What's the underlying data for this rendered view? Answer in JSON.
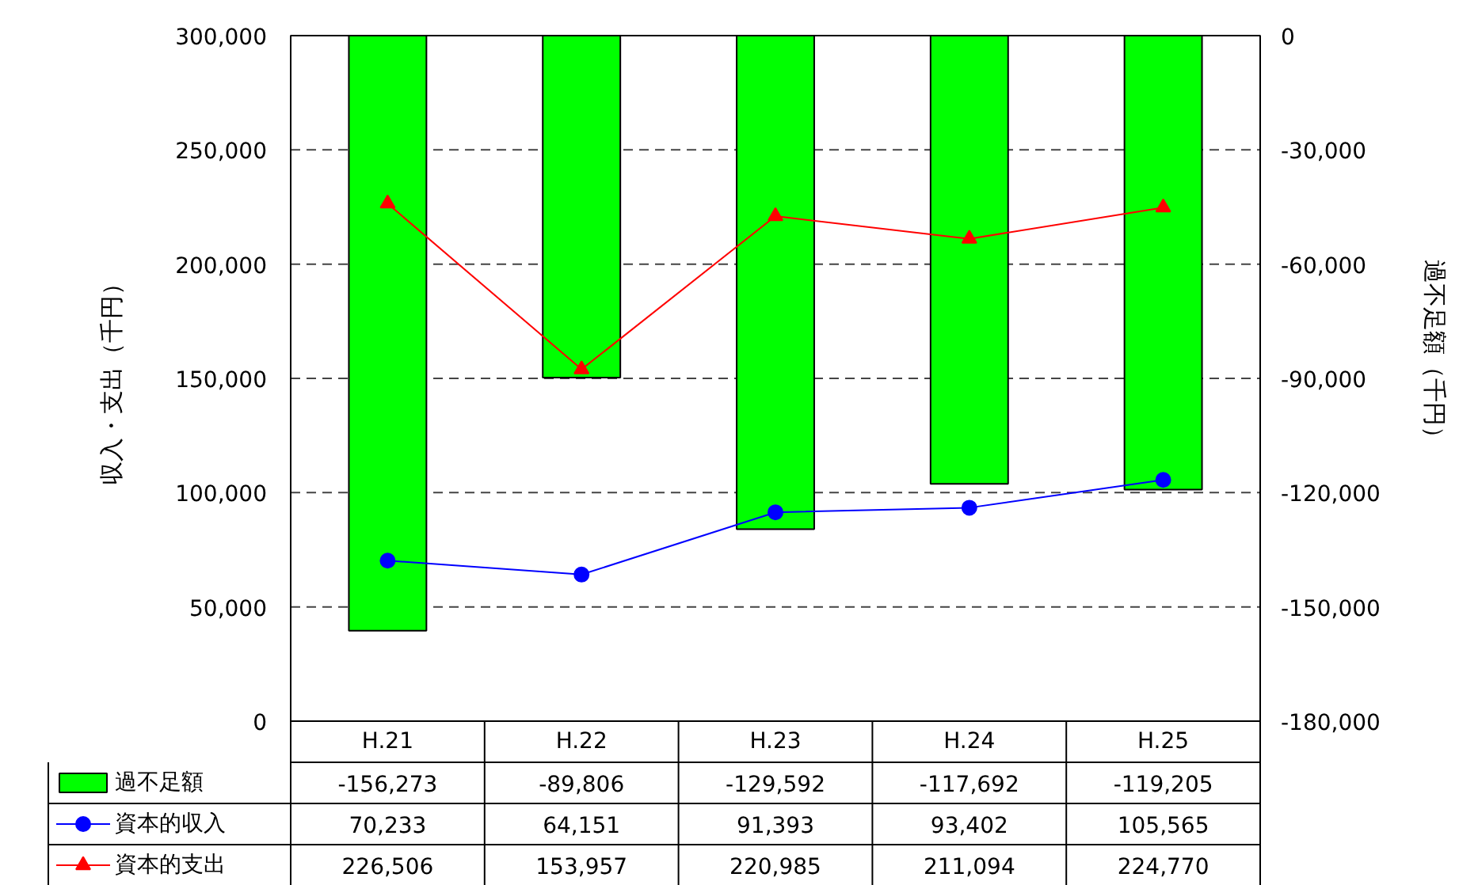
{
  "chart_data": {
    "type": "bar",
    "ylabel": "収入・支出（千円）",
    "y2label": "過不足額（千円）",
    "categories": [
      "H.21",
      "H.22",
      "H.23",
      "H.24",
      "H.25"
    ],
    "ylim": [
      0,
      300000
    ],
    "yticks": [
      {
        "value": 0,
        "label": "0"
      },
      {
        "value": 50000,
        "label": "50,000"
      },
      {
        "value": 100000,
        "label": "100,000"
      },
      {
        "value": 150000,
        "label": "150,000"
      },
      {
        "value": 200000,
        "label": "200,000"
      },
      {
        "value": 250000,
        "label": "250,000"
      },
      {
        "value": 300000,
        "label": "300,000"
      }
    ],
    "y2lim": [
      -180000,
      0
    ],
    "y2ticks": [
      {
        "value": -180000,
        "label": "-180,000"
      },
      {
        "value": -150000,
        "label": "-150,000"
      },
      {
        "value": -120000,
        "label": "-120,000"
      },
      {
        "value": -90000,
        "label": "-90,000"
      },
      {
        "value": -60000,
        "label": "-60,000"
      },
      {
        "value": -30000,
        "label": "-30,000"
      },
      {
        "value": 0,
        "label": "0"
      }
    ],
    "series": [
      {
        "name": "過不足額",
        "axis": "y2",
        "color": "#00ff00",
        "values": [
          -156273,
          -89806,
          -129592,
          -117692,
          -119205
        ],
        "value_labels": [
          "-156,273",
          "-89,806",
          "-129,592",
          "-117,692",
          "-119,205"
        ]
      },
      {
        "name": "資本的収入",
        "type": "line",
        "marker": "circle",
        "color": "#0000ff",
        "values": [
          70233,
          64151,
          91393,
          93402,
          105565
        ],
        "value_labels": [
          "70,233",
          "64,151",
          "91,393",
          "93,402",
          "105,565"
        ]
      },
      {
        "name": "資本的支出",
        "type": "line",
        "marker": "triangle",
        "color": "#ff0000",
        "values": [
          226506,
          153957,
          220985,
          211094,
          224770
        ],
        "value_labels": [
          "226,506",
          "153,957",
          "220,985",
          "211,094",
          "224,770"
        ]
      }
    ],
    "grid": "y",
    "legend": "bottom"
  }
}
